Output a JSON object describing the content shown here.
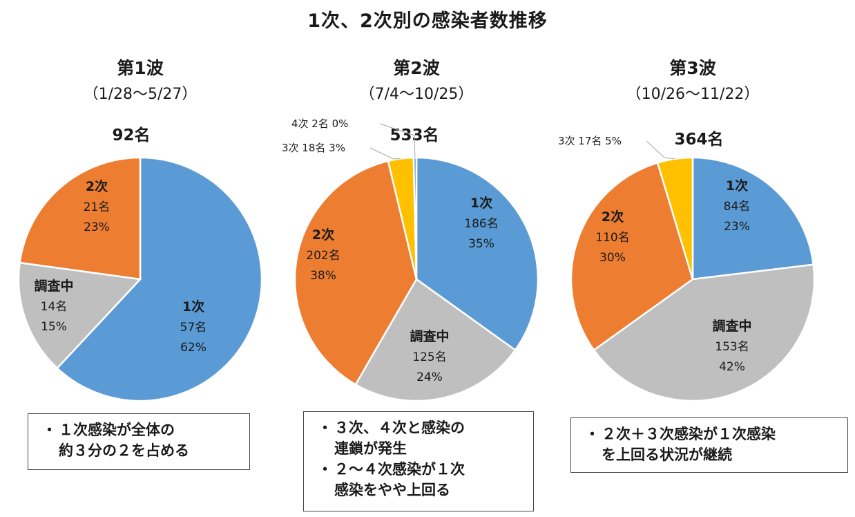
{
  "title": "1次、2次別の感染者数推移",
  "colors": {
    "primary": "#5b9bd5",
    "secondary": "#ed7d31",
    "investigating": "#bfbfbf",
    "tertiary": "#ffc000",
    "quaternary": "#5b9bd5"
  },
  "chart_data": [
    {
      "type": "pie",
      "title": "第1波",
      "subtitle": "（1/28～5/27）",
      "total": "92名",
      "slices": [
        {
          "name": "1次",
          "count": "57名",
          "value": 57,
          "pct": "62%",
          "color": "#5b9bd5"
        },
        {
          "name": "調査中",
          "count": "14名",
          "value": 14,
          "pct": "15%",
          "color": "#bfbfbf"
        },
        {
          "name": "2次",
          "count": "21名",
          "value": 21,
          "pct": "23%",
          "color": "#ed7d31"
        }
      ]
    },
    {
      "type": "pie",
      "title": "第2波",
      "subtitle": "（7/4～10/25）",
      "total": "533名",
      "slices": [
        {
          "name": "1次",
          "count": "186名",
          "value": 186,
          "pct": "35%",
          "color": "#5b9bd5"
        },
        {
          "name": "調査中",
          "count": "125名",
          "value": 125,
          "pct": "24%",
          "color": "#bfbfbf"
        },
        {
          "name": "2次",
          "count": "202名",
          "value": 202,
          "pct": "38%",
          "color": "#ed7d31"
        },
        {
          "name": "3次",
          "count": "18名",
          "value": 18,
          "pct": "3%",
          "color": "#ffc000"
        },
        {
          "name": "4次",
          "count": "2名",
          "value": 2,
          "pct": "0%",
          "color": "#5b9bd5"
        }
      ]
    },
    {
      "type": "pie",
      "title": "第3波",
      "subtitle": "（10/26～11/22）",
      "total": "364名",
      "slices": [
        {
          "name": "1次",
          "count": "84名",
          "value": 84,
          "pct": "23%",
          "color": "#5b9bd5"
        },
        {
          "name": "調査中",
          "count": "153名",
          "value": 153,
          "pct": "42%",
          "color": "#bfbfbf"
        },
        {
          "name": "2次",
          "count": "110名",
          "value": 110,
          "pct": "30%",
          "color": "#ed7d31"
        },
        {
          "name": "3次",
          "count": "17名",
          "value": 17,
          "pct": "5%",
          "color": "#ffc000"
        }
      ]
    }
  ],
  "notes": [
    [
      "・",
      "１次感染が全体の",
      "約３分の２を占める"
    ],
    [
      "・",
      "３次、４次と感染の",
      "連鎖が発生",
      "・",
      "２～４次感染が１次",
      "感染をやや上回る"
    ],
    [
      "・",
      "２次＋３次感染が１次感染",
      "を上回る状況が継続"
    ]
  ]
}
